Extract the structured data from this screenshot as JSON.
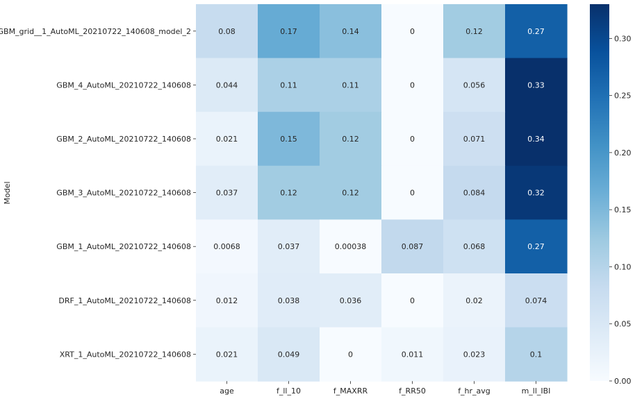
{
  "chart_data": {
    "type": "heatmap",
    "ylabel": "Model",
    "xlabel": "",
    "x_categories": [
      "age",
      "f_ll_10",
      "f_MAXRR",
      "f_RR50",
      "f_hr_avg",
      "m_ll_IBI"
    ],
    "y_categories": [
      "GBM_grid__1_AutoML_20210722_140608_model_2",
      "GBM_4_AutoML_20210722_140608",
      "GBM_2_AutoML_20210722_140608",
      "GBM_3_AutoML_20210722_140608",
      "GBM_1_AutoML_20210722_140608",
      "DRF_1_AutoML_20210722_140608",
      "XRT_1_AutoML_20210722_140608"
    ],
    "values": [
      [
        0.08,
        0.17,
        0.14,
        0,
        0.12,
        0.27
      ],
      [
        0.044,
        0.11,
        0.11,
        0,
        0.056,
        0.33
      ],
      [
        0.021,
        0.15,
        0.12,
        0,
        0.071,
        0.34
      ],
      [
        0.037,
        0.12,
        0.12,
        0,
        0.084,
        0.32
      ],
      [
        0.0068,
        0.037,
        0.00038,
        0.087,
        0.068,
        0.27
      ],
      [
        0.012,
        0.038,
        0.036,
        0,
        0.02,
        0.074
      ],
      [
        0.021,
        0.049,
        0,
        0.011,
        0.023,
        0.1
      ]
    ],
    "colorbar": {
      "vmin": 0,
      "vmax": 0.33,
      "ticks": [
        0.0,
        0.05,
        0.1,
        0.15,
        0.2,
        0.25,
        0.3
      ],
      "tick_labels": [
        "0.00",
        "0.05",
        "0.10",
        "0.15",
        "0.20",
        "0.25",
        "0.30"
      ]
    },
    "colormap": "Blues",
    "annotations": true
  }
}
